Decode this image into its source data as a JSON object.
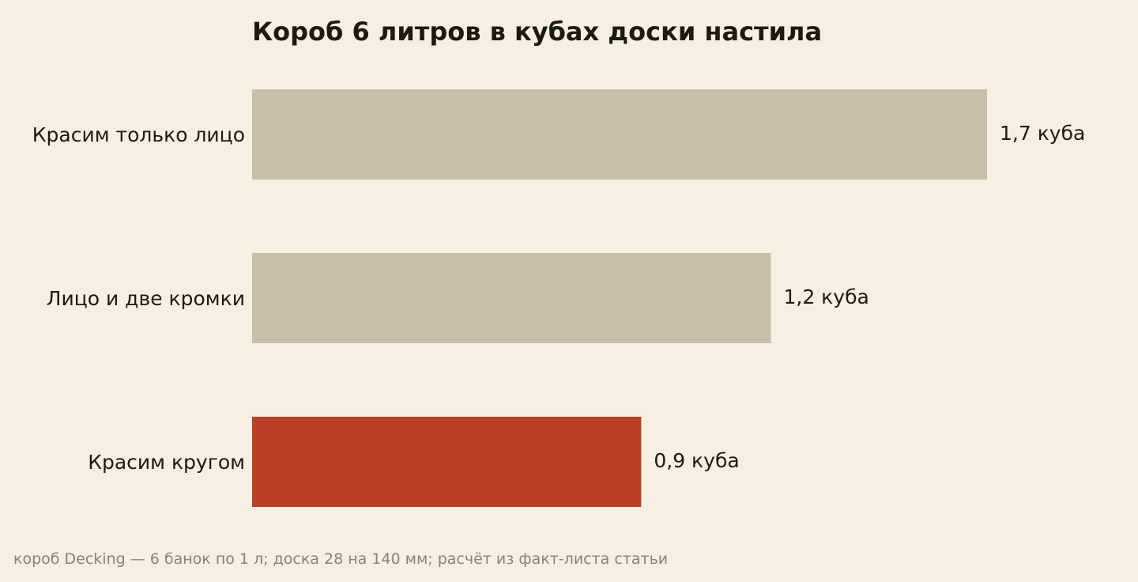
{
  "chart_data": {
    "type": "bar",
    "orientation": "horizontal",
    "title": "Короб 6 литров в кубах доски настила",
    "categories": [
      "Красим только лицо",
      "Лицо и две кромки",
      "Красим кругом"
    ],
    "values": [
      1.7,
      1.2,
      0.9
    ],
    "value_labels": [
      "1,7 куба",
      "1,2 куба",
      "0,9 куба"
    ],
    "unit": "куба",
    "bar_colors": [
      "#c9bea8",
      "#c9bea8",
      "#bb3e27"
    ],
    "xlim": [
      0,
      1.7
    ],
    "grid": false,
    "legend": "none"
  },
  "note": "короб Decking — 6 банок по 1 л; доска 28 на 140 мм; расчёт из факт-листа статьи",
  "colors": {
    "background": "#f6efe2",
    "text": "#1e1a12",
    "note": "#8a8274",
    "muted_bar": "#c9bea8",
    "accent_bar": "#bb3e27"
  }
}
